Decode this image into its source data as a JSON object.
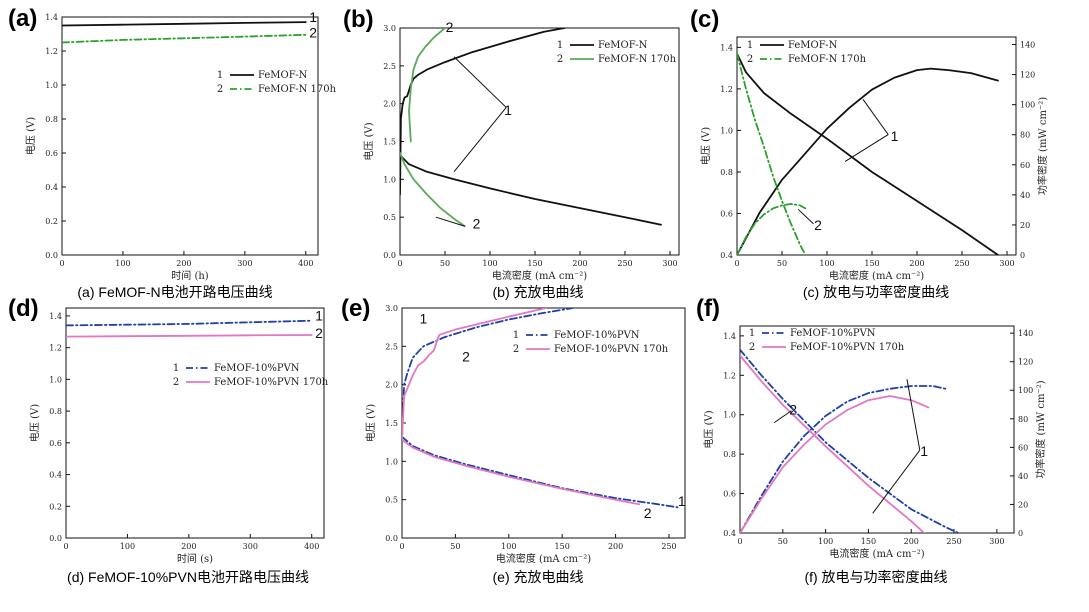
{
  "chart_data": [
    {
      "panel": "(a)",
      "type": "line",
      "caption": "(a) FeMOF-N电池开路电压曲线",
      "xlabel": "时间 (h)",
      "ylabel": "电压 (V)",
      "xlim": [
        0,
        420
      ],
      "ylim": [
        0,
        1.4
      ],
      "xticks": [
        0,
        100,
        200,
        300,
        400
      ],
      "yticks": [
        0.0,
        0.2,
        0.4,
        0.6,
        0.8,
        1.0,
        1.2,
        1.4
      ],
      "legend": "center-right",
      "series": [
        {
          "name": "FeMOF-N",
          "tag": "1",
          "color": "#111111",
          "dash": "solid",
          "x": [
            0,
            100,
            200,
            300,
            400
          ],
          "y": [
            1.35,
            1.355,
            1.36,
            1.365,
            1.37
          ]
        },
        {
          "name": "FeMOF-N 170h",
          "tag": "2",
          "color": "#2ca02c",
          "dash": "dashdot",
          "x": [
            0,
            100,
            200,
            300,
            400
          ],
          "y": [
            1.25,
            1.265,
            1.275,
            1.285,
            1.295
          ]
        }
      ],
      "annotations": [
        {
          "text": "1",
          "x": 412,
          "y": 1.37
        },
        {
          "text": "2",
          "x": 412,
          "y": 1.28
        }
      ]
    },
    {
      "panel": "(b)",
      "type": "line",
      "caption": "(b) 充放电曲线",
      "xlabel": "电流密度 (mA cm⁻²)",
      "ylabel": "电压 (V)",
      "xlim": [
        0,
        310
      ],
      "ylim": [
        0,
        3.0
      ],
      "xticks": [
        0,
        50,
        100,
        150,
        200,
        250,
        300
      ],
      "yticks": [
        0.0,
        0.5,
        1.0,
        1.5,
        2.0,
        2.5,
        3.0
      ],
      "legend": "top-right",
      "series": [
        {
          "name": "FeMOF-N",
          "tag": "1",
          "color": "#111111",
          "dash": "solid",
          "x": [
            0,
            1,
            3,
            5,
            8,
            12,
            15,
            20,
            30,
            50,
            80,
            120,
            160,
            183
          ],
          "y": [
            0.8,
            1.8,
            2.0,
            2.08,
            2.1,
            2.25,
            2.33,
            2.38,
            2.45,
            2.55,
            2.68,
            2.82,
            2.95,
            3.0
          ]
        },
        {
          "name": "FeMOF-N",
          "tag": "1",
          "color": "#111111",
          "dash": "solid",
          "x": [
            0,
            10,
            30,
            60,
            100,
            150,
            200,
            250,
            290
          ],
          "y": [
            1.32,
            1.2,
            1.1,
            1.0,
            0.88,
            0.74,
            0.62,
            0.5,
            0.4
          ]
        },
        {
          "name": "FeMOF-N 170h",
          "tag": "2",
          "color": "#5aa85a",
          "dash": "solid",
          "x": [
            12,
            10,
            12,
            15,
            20,
            28,
            38,
            50
          ],
          "y": [
            1.5,
            1.9,
            2.2,
            2.45,
            2.62,
            2.75,
            2.88,
            3.0
          ]
        },
        {
          "name": "FeMOF-N 170h",
          "tag": "2",
          "color": "#5aa85a",
          "dash": "solid",
          "x": [
            0,
            5,
            15,
            30,
            45,
            60,
            72
          ],
          "y": [
            1.35,
            1.2,
            1.0,
            0.8,
            0.62,
            0.48,
            0.38
          ]
        }
      ],
      "annotations": [
        {
          "text": "1",
          "x": 120,
          "y": 1.85
        },
        {
          "text": "2",
          "x": 55,
          "y": 2.95
        },
        {
          "text": "2",
          "x": 85,
          "y": 0.35
        }
      ]
    },
    {
      "panel": "(c)",
      "type": "line",
      "caption": "(c) 放电与功率密度曲线",
      "xlabel": "电流密度 (mA cm⁻²)",
      "ylabel": "电压 (V)",
      "y2label": "功率密度 (mW cm⁻²)",
      "xlim": [
        0,
        310
      ],
      "ylim": [
        0.4,
        1.45
      ],
      "y2lim": [
        0,
        145
      ],
      "xticks": [
        0,
        50,
        100,
        150,
        200,
        250,
        300
      ],
      "yticks": [
        0.4,
        0.6,
        0.8,
        1.0,
        1.2,
        1.4
      ],
      "y2ticks": [
        0,
        20,
        40,
        60,
        80,
        100,
        120,
        140
      ],
      "legend": "top-left",
      "series": [
        {
          "name": "FeMOF-N",
          "tag": "1",
          "color": "#111111",
          "dash": "solid",
          "axis": "left",
          "x": [
            0,
            10,
            30,
            60,
            100,
            150,
            200,
            250,
            290
          ],
          "y": [
            1.37,
            1.28,
            1.18,
            1.08,
            0.96,
            0.8,
            0.66,
            0.52,
            0.4
          ]
        },
        {
          "name": "FeMOF-N",
          "tag": "1",
          "color": "#111111",
          "dash": "solid",
          "axis": "right",
          "x": [
            0,
            25,
            50,
            75,
            100,
            125,
            150,
            175,
            200,
            215,
            235,
            260,
            290
          ],
          "y": [
            0,
            28,
            50,
            67,
            84,
            98,
            110,
            118,
            123,
            124,
            123,
            121,
            116
          ]
        },
        {
          "name": "FeMOF-N 170h",
          "tag": "2",
          "color": "#2ca02c",
          "dash": "dashdot",
          "axis": "left",
          "x": [
            0,
            10,
            20,
            30,
            40,
            50,
            60,
            70,
            76
          ],
          "y": [
            1.37,
            1.2,
            1.05,
            0.92,
            0.78,
            0.66,
            0.55,
            0.45,
            0.4
          ]
        },
        {
          "name": "FeMOF-N 170h",
          "tag": "2",
          "color": "#2ca02c",
          "dash": "dashdot",
          "axis": "right",
          "x": [
            0,
            10,
            20,
            30,
            40,
            50,
            60,
            70,
            76
          ],
          "y": [
            0,
            12,
            21,
            27,
            31,
            33,
            34,
            33,
            31
          ]
        }
      ],
      "annotations": [
        {
          "text": "1",
          "x": 175,
          "y": 0.95
        },
        {
          "text": "2",
          "x": 90,
          "y": 0.52
        }
      ]
    },
    {
      "panel": "(d)",
      "type": "line",
      "caption": "(d) FeMOF-10%PVN电池开路电压曲线",
      "xlabel": "时间 (s)",
      "ylabel": "电压 (V)",
      "xlim": [
        0,
        420
      ],
      "ylim": [
        0,
        1.45
      ],
      "xticks": [
        0,
        100,
        200,
        300,
        400
      ],
      "yticks": [
        0.0,
        0.2,
        0.4,
        0.6,
        0.8,
        1.0,
        1.2,
        1.4
      ],
      "legend": "center-right",
      "series": [
        {
          "name": "FeMOF-10%PVN",
          "tag": "1",
          "color": "#1f3fa8",
          "dash": "dashdot",
          "x": [
            0,
            100,
            200,
            300,
            400
          ],
          "y": [
            1.34,
            1.345,
            1.35,
            1.36,
            1.37
          ]
        },
        {
          "name": "FeMOF-10%PVN 170h",
          "tag": "2",
          "color": "#e377c2",
          "dash": "solid",
          "x": [
            0,
            100,
            200,
            300,
            400
          ],
          "y": [
            1.27,
            1.272,
            1.275,
            1.278,
            1.28
          ]
        }
      ],
      "annotations": [
        {
          "text": "1",
          "x": 412,
          "y": 1.37
        },
        {
          "text": "2",
          "x": 412,
          "y": 1.26
        }
      ]
    },
    {
      "panel": "(e)",
      "type": "line",
      "caption": "(e) 充放电曲线",
      "xlabel": "电流密度 (mA cm⁻²)",
      "ylabel": "电压 (V)",
      "xlim": [
        0,
        265
      ],
      "ylim": [
        0,
        3.0
      ],
      "xticks": [
        0,
        50,
        100,
        150,
        200,
        250
      ],
      "yticks": [
        0.0,
        0.5,
        1.0,
        1.5,
        2.0,
        2.5,
        3.0
      ],
      "legend": "top-right",
      "series": [
        {
          "name": "FeMOF-10%PVN",
          "tag": "1",
          "color": "#1f3fa8",
          "dash": "dashdot",
          "x": [
            0,
            2,
            5,
            10,
            20,
            40,
            70,
            100,
            130,
            160
          ],
          "y": [
            1.3,
            2.0,
            2.15,
            2.35,
            2.5,
            2.62,
            2.75,
            2.85,
            2.93,
            3.0
          ]
        },
        {
          "name": "FeMOF-10%PVN",
          "tag": "1",
          "color": "#1f3fa8",
          "dash": "dashdot",
          "x": [
            0,
            10,
            30,
            60,
            100,
            150,
            200,
            240,
            258
          ],
          "y": [
            1.32,
            1.2,
            1.08,
            0.96,
            0.82,
            0.65,
            0.52,
            0.44,
            0.4
          ]
        },
        {
          "name": "FeMOF-10%PVN 170h",
          "tag": "2",
          "color": "#e377c2",
          "dash": "solid",
          "x": [
            0,
            2,
            5,
            10,
            15,
            20,
            25,
            30,
            33,
            35,
            50,
            80,
            110,
            135
          ],
          "y": [
            1.3,
            1.85,
            1.95,
            2.12,
            2.25,
            2.3,
            2.38,
            2.45,
            2.58,
            2.65,
            2.72,
            2.82,
            2.92,
            3.0
          ]
        },
        {
          "name": "FeMOF-10%PVN 170h",
          "tag": "2",
          "color": "#e377c2",
          "dash": "solid",
          "x": [
            0,
            10,
            30,
            60,
            100,
            150,
            200,
            222
          ],
          "y": [
            1.28,
            1.18,
            1.06,
            0.94,
            0.8,
            0.64,
            0.5,
            0.44
          ]
        }
      ],
      "annotations": [
        {
          "text": "1",
          "x": 20,
          "y": 2.8
        },
        {
          "text": "2",
          "x": 60,
          "y": 2.3
        },
        {
          "text": "1",
          "x": 262,
          "y": 0.42
        },
        {
          "text": "2",
          "x": 230,
          "y": 0.26
        }
      ]
    },
    {
      "panel": "(f)",
      "type": "line",
      "caption": "(f) 放电与功率密度曲线",
      "xlabel": "电流密度 (mA cm⁻²)",
      "ylabel": "电压 (V)",
      "y2label": "功率密度 (mW cm⁻²)",
      "xlim": [
        0,
        320
      ],
      "ylim": [
        0.4,
        1.45
      ],
      "y2lim": [
        0,
        145
      ],
      "xticks": [
        0,
        50,
        100,
        150,
        200,
        250,
        300
      ],
      "yticks": [
        0.4,
        0.6,
        0.8,
        1.0,
        1.2,
        1.4
      ],
      "y2ticks": [
        0,
        20,
        40,
        60,
        80,
        100,
        120,
        140
      ],
      "legend": "top-left",
      "series": [
        {
          "name": "FeMOF-10%PVN",
          "tag": "1",
          "color": "#1f3fa8",
          "dash": "dashdot",
          "axis": "left",
          "x": [
            0,
            25,
            50,
            100,
            150,
            200,
            240,
            255
          ],
          "y": [
            1.33,
            1.2,
            1.08,
            0.86,
            0.68,
            0.52,
            0.43,
            0.4
          ]
        },
        {
          "name": "FeMOF-10%PVN",
          "tag": "1",
          "color": "#1f3fa8",
          "dash": "dashdot",
          "axis": "right",
          "x": [
            0,
            25,
            50,
            75,
            100,
            125,
            150,
            175,
            200,
            225,
            240
          ],
          "y": [
            0,
            26,
            50,
            68,
            82,
            92,
            98,
            101,
            103,
            103,
            101
          ]
        },
        {
          "name": "FeMOF-10%PVN 170h",
          "tag": "2",
          "color": "#e377c2",
          "dash": "solid",
          "axis": "left",
          "x": [
            0,
            25,
            50,
            100,
            150,
            200,
            215
          ],
          "y": [
            1.3,
            1.17,
            1.05,
            0.84,
            0.64,
            0.46,
            0.4
          ]
        },
        {
          "name": "FeMOF-10%PVN 170h",
          "tag": "2",
          "color": "#e377c2",
          "dash": "solid",
          "axis": "right",
          "x": [
            0,
            25,
            50,
            75,
            100,
            125,
            150,
            175,
            200,
            220
          ],
          "y": [
            0,
            24,
            46,
            62,
            76,
            86,
            93,
            96,
            93,
            88
          ]
        }
      ],
      "annotations": [
        {
          "text": "2",
          "x": 62,
          "y": 1.0
        },
        {
          "text": "1",
          "x": 215,
          "y": 0.79
        }
      ]
    }
  ]
}
